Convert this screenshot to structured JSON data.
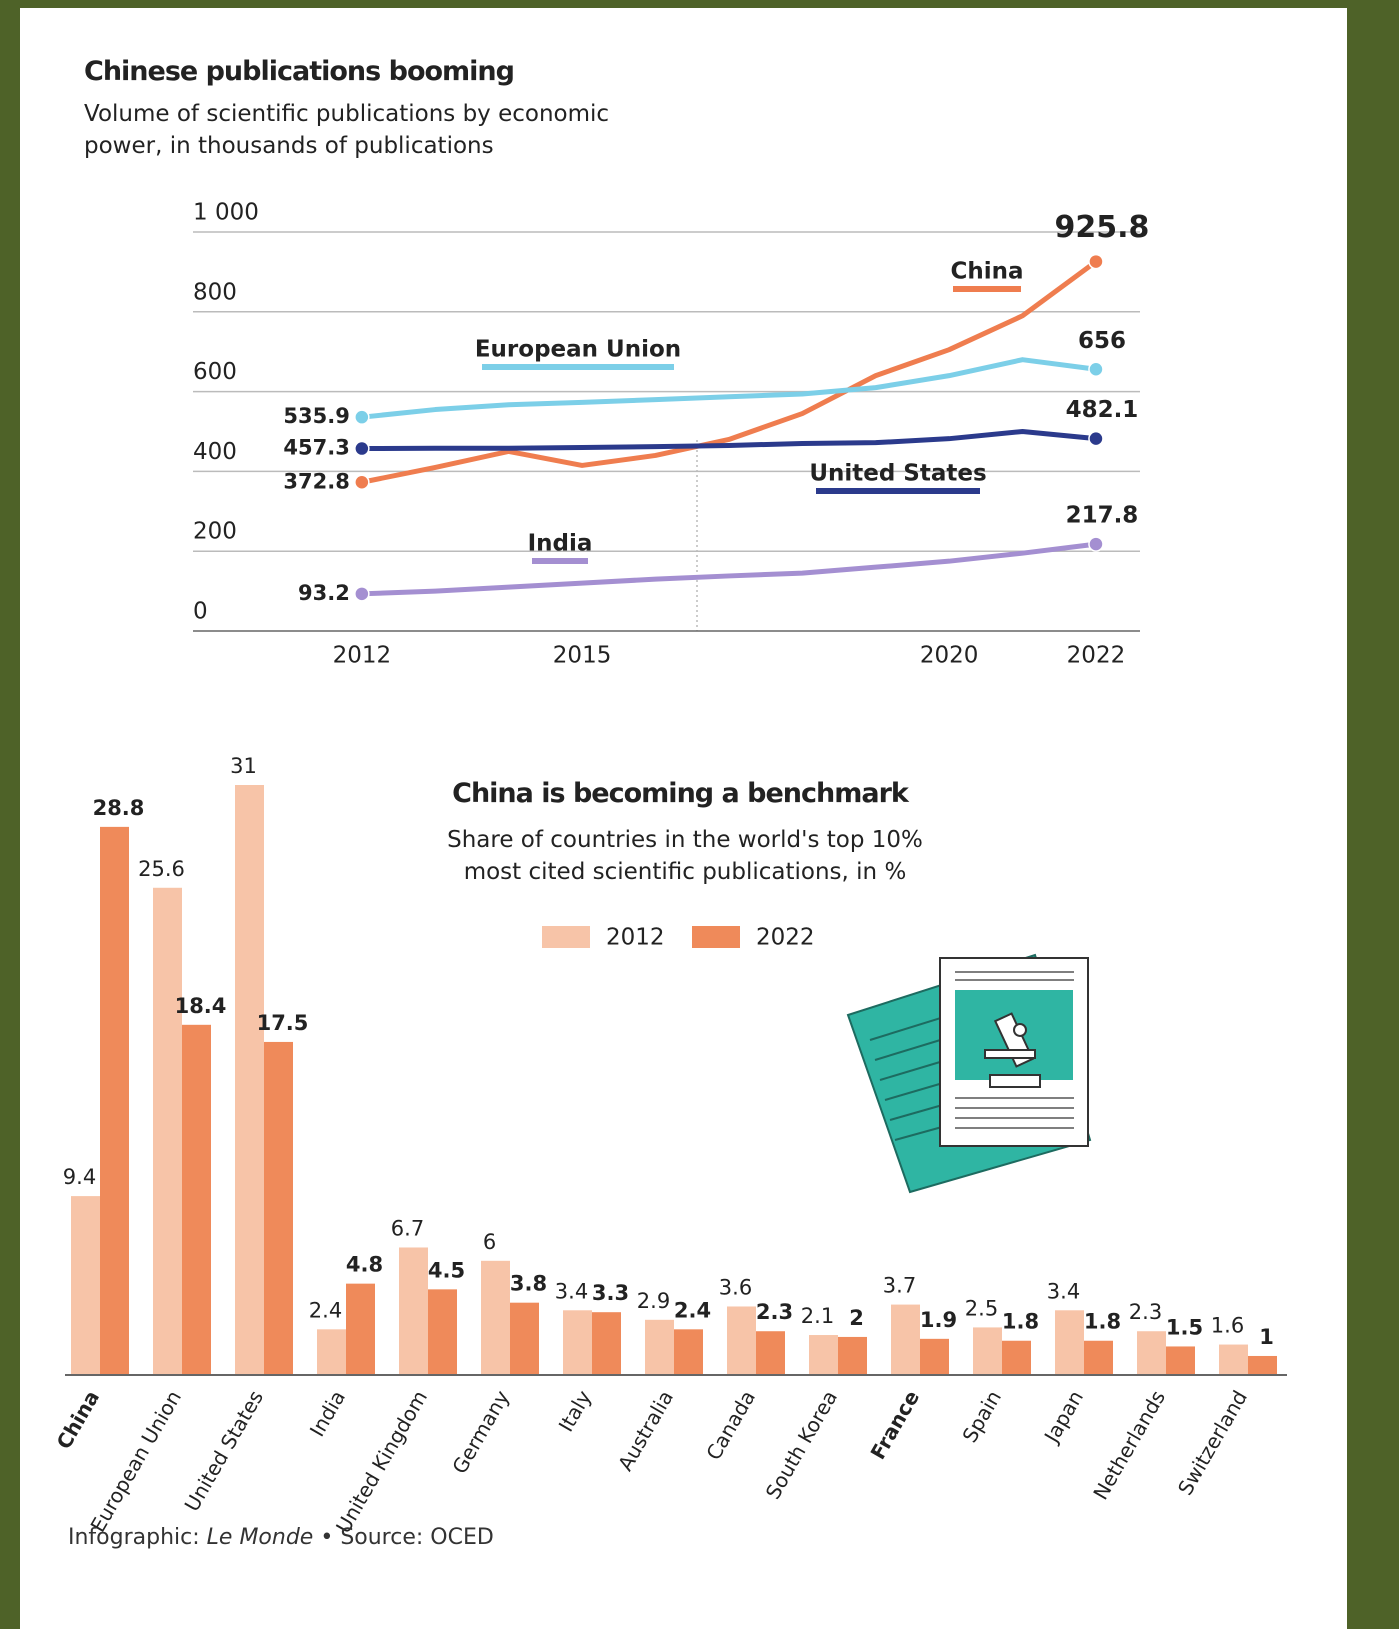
{
  "chart_data": [
    {
      "type": "line",
      "title": "Chinese publications booming",
      "subtitle": "Volume of scientific publications by economic power, in thousands of publications",
      "x": [
        2012,
        2013,
        2014,
        2015,
        2016,
        2017,
        2018,
        2019,
        2020,
        2021,
        2022
      ],
      "xlim": [
        2009.7,
        2022.6
      ],
      "xticks": [
        2012,
        2015,
        2020,
        2022
      ],
      "ylim": [
        0,
        1000
      ],
      "yticks": [
        0,
        200,
        400,
        600,
        800,
        {
          "value": 1000,
          "label": "1 000"
        }
      ],
      "grid": true,
      "series": [
        {
          "name": "China",
          "color": "#ef7d4f",
          "values": [
            372.8,
            410,
            450,
            415,
            440,
            480,
            545,
            640,
            705,
            790,
            925.8
          ]
        },
        {
          "name": "European Union",
          "color": "#7ccfe8",
          "values": [
            535.9,
            555,
            567,
            573,
            580,
            587,
            594,
            610,
            640,
            680,
            656
          ]
        },
        {
          "name": "United States",
          "color": "#2b3a8c",
          "values": [
            457.3,
            458,
            458,
            460,
            462,
            465,
            470,
            472,
            482,
            500,
            482.1
          ]
        },
        {
          "name": "India",
          "color": "#a48fd1",
          "values": [
            93.2,
            100,
            110,
            120,
            130,
            138,
            145,
            160,
            175,
            195,
            217.8
          ]
        }
      ]
    },
    {
      "type": "bar",
      "title": "China is becoming a benchmark",
      "subtitle": "Share of countries in the world's top 10% most cited scientific publications, in %",
      "categories": [
        "China",
        "European Union",
        "United States",
        "India",
        "United Kingdom",
        "Germany",
        "Italy",
        "Australia",
        "Canada",
        "South Korea",
        "France",
        "Spain",
        "Japan",
        "Netherlands",
        "Switzerland"
      ],
      "series": [
        {
          "name": "2012",
          "color": "#f7c4a8",
          "values": [
            9.4,
            25.6,
            31,
            2.4,
            6.7,
            6,
            3.4,
            2.9,
            3.6,
            2.1,
            3.7,
            2.5,
            3.4,
            2.3,
            1.6
          ]
        },
        {
          "name": "2022",
          "color": "#ef8a5a",
          "values": [
            28.8,
            18.4,
            17.5,
            4.8,
            4.5,
            3.8,
            3.3,
            2.4,
            2.3,
            2,
            1.9,
            1.8,
            1.8,
            1.5,
            1
          ]
        }
      ]
    }
  ],
  "footer": {
    "credit_label": "Infographic:",
    "publisher": "Le Monde",
    "source": "Source: OCED"
  }
}
